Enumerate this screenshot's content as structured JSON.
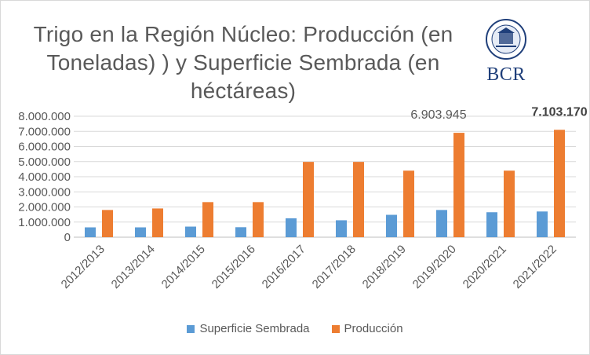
{
  "chart_data": {
    "type": "bar",
    "title": "Trigo en la Región Núcleo: Producción (en Toneladas) ) y  Superficie Sembrada (en héctáreas)",
    "title_lines": [
      "Trigo en la Región Núcleo: Producción (en",
      "Toneladas) ) y  Superficie Sembrada (en",
      "héctáreas)"
    ],
    "categories": [
      "2012/2013",
      "2013/2014",
      "2014/2015",
      "2015/2016",
      "2016/2017",
      "2017/2018",
      "2018/2019",
      "2019/2020",
      "2020/2021",
      "2021/2022"
    ],
    "series": [
      {
        "name": "Superficie Sembrada",
        "color": "#5b9bd5",
        "values": [
          650000,
          650000,
          700000,
          660000,
          1250000,
          1120000,
          1480000,
          1800000,
          1650000,
          1700000
        ]
      },
      {
        "name": "Producción",
        "color": "#ed7d31",
        "values": [
          1800000,
          1900000,
          2320000,
          2320000,
          4980000,
          4980000,
          4400000,
          6903945,
          4400000,
          7103170
        ]
      }
    ],
    "ylim": [
      0,
      8000000
    ],
    "yticks": [
      "0",
      "1.000.000",
      "2.000.000",
      "3.000.000",
      "4.000.000",
      "5.000.000",
      "6.000.000",
      "7.000.000",
      "8.000.000"
    ],
    "annotations": [
      {
        "category": "2019/2020",
        "text": "6.903.945",
        "bold": false
      },
      {
        "category": "2021/2022",
        "text": "7.103.170",
        "bold": true
      }
    ],
    "grid": true,
    "legend_position": "bottom",
    "xlabel": "",
    "ylabel": ""
  },
  "logo": {
    "text": "BCR",
    "icon": "bcr-seal-icon"
  }
}
